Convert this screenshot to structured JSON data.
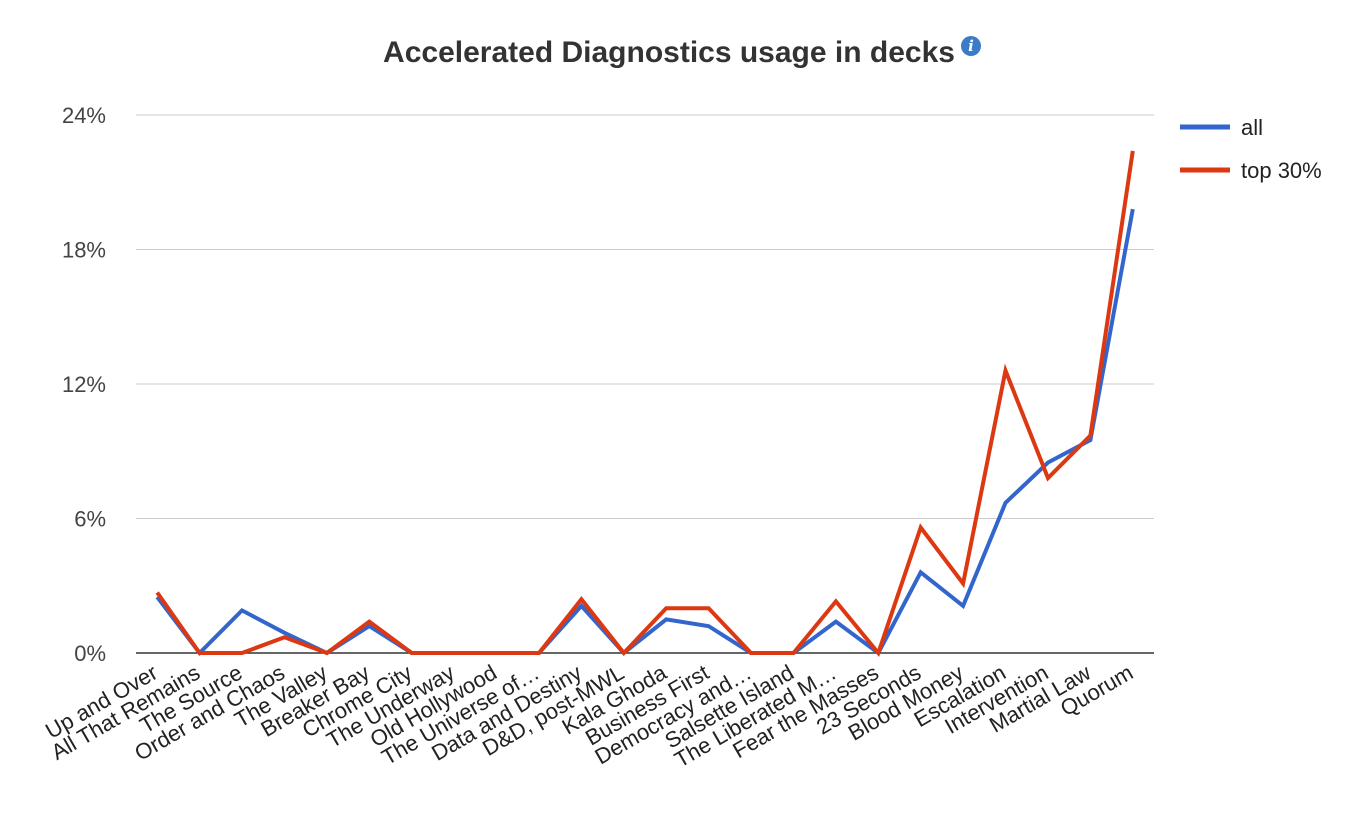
{
  "chart_data": {
    "type": "line",
    "title": "Accelerated Diagnostics usage in decks",
    "info_icon": "info-icon",
    "categories": [
      "Up and Over",
      "All That Remains",
      "The Source",
      "Order and Chaos",
      "The Valley",
      "Breaker Bay",
      "Chrome City",
      "The Underway",
      "Old Hollywood",
      "The Universe of…",
      "Data and Destiny",
      "D&D, post-MWL",
      "Kala Ghoda",
      "Business First",
      "Democracy and…",
      "Salsette Island",
      "The Liberated M…",
      "Fear the Masses",
      "23 Seconds",
      "Blood Money",
      "Escalation",
      "Intervention",
      "Martial Law",
      "Quorum"
    ],
    "series": [
      {
        "name": "all",
        "color": "#3366cc",
        "values": [
          2.5,
          0,
          1.9,
          0.9,
          0,
          1.2,
          0,
          0,
          0,
          0,
          2.1,
          0,
          1.5,
          1.2,
          0,
          0,
          1.4,
          0,
          3.6,
          2.1,
          6.7,
          8.5,
          9.5,
          19.8
        ]
      },
      {
        "name": "top 30%",
        "color": "#dc3912",
        "values": [
          2.7,
          0,
          0,
          0.7,
          0,
          1.4,
          0,
          0,
          0,
          0,
          2.4,
          0,
          2.0,
          2.0,
          0,
          0,
          2.3,
          0,
          5.6,
          3.1,
          12.6,
          7.8,
          9.7,
          22.4
        ]
      }
    ],
    "y_ticks": [
      "0%",
      "6%",
      "12%",
      "18%",
      "24%"
    ],
    "ylim": [
      0,
      24
    ],
    "xlabel": "",
    "ylabel": "",
    "grid": true,
    "legend_position": "right"
  }
}
